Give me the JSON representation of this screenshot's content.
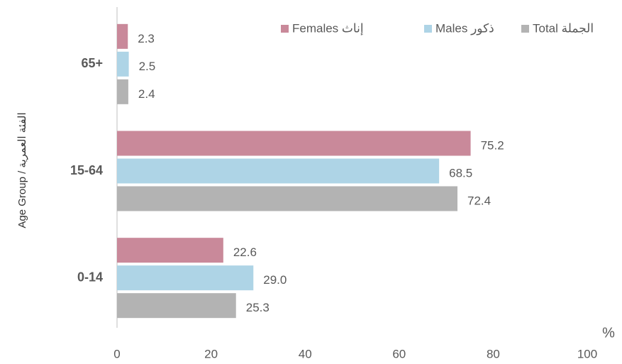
{
  "chart_data": {
    "type": "bar",
    "orientation": "horizontal",
    "y_label": "Age Group / الفئة العمرية",
    "x_unit": "%",
    "categories": [
      "0-14",
      "15-64",
      "65+"
    ],
    "series": [
      {
        "name": "Total الجملة",
        "color": "#b3b3b3",
        "values": [
          25.3,
          72.4,
          2.4
        ],
        "value_labels": [
          "25.3",
          "72.4",
          "2.4"
        ]
      },
      {
        "name": "Males ذكور",
        "color": "#aed4e6",
        "values": [
          29.0,
          68.5,
          2.5
        ],
        "value_labels": [
          "29.0",
          "68.5",
          "2.5"
        ]
      },
      {
        "name": "Females إناث",
        "color": "#c9899a",
        "values": [
          22.6,
          75.2,
          2.3
        ],
        "value_labels": [
          "22.6",
          "75.2",
          "2.3"
        ]
      }
    ],
    "xlim": [
      0,
      100
    ],
    "xticks": [
      0,
      20,
      40,
      60,
      80,
      100
    ],
    "legend": "top-right",
    "grid": false
  }
}
